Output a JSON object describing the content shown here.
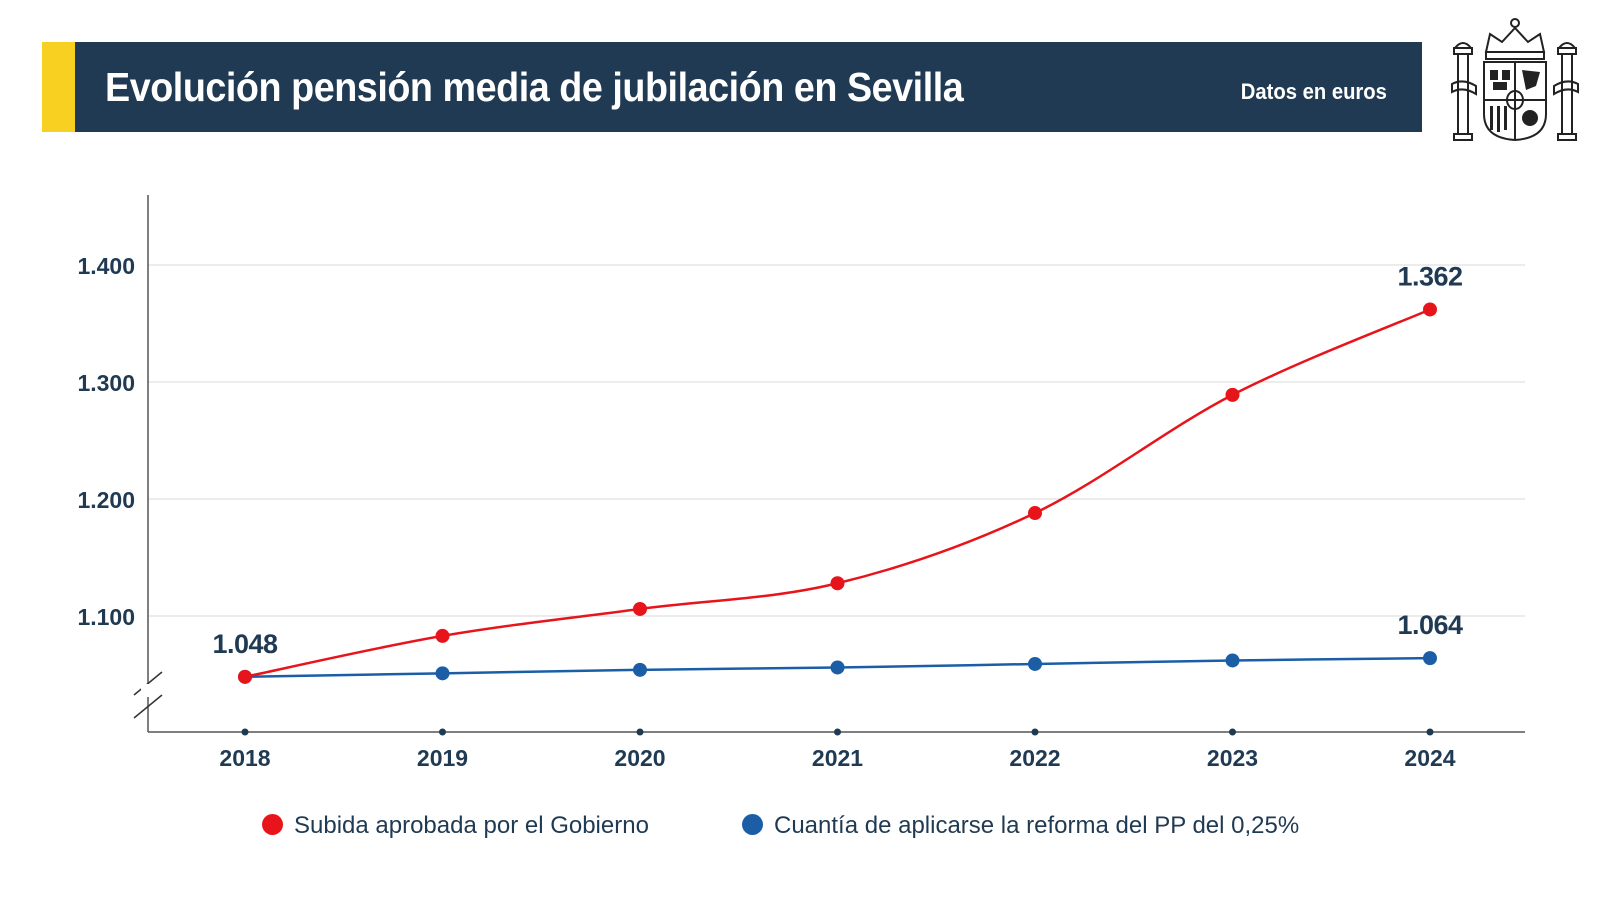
{
  "header": {
    "title": "Evolución pensión media de jubilación en Sevilla",
    "units": "Datos en euros",
    "emblem": "spain-coat-of-arms-icon"
  },
  "colors": {
    "navy": "#1f3a52",
    "yellow": "#f7d022",
    "red": "#e8141b",
    "blue": "#1b5ea6",
    "grid": "#d9d9d9"
  },
  "chart_data": {
    "type": "line",
    "x": [
      "2018",
      "2019",
      "2020",
      "2021",
      "2022",
      "2023",
      "2024"
    ],
    "series": [
      {
        "name": "Subida aprobada por el Gobierno",
        "color": "#e8141b",
        "values": [
          1048,
          1083,
          1106,
          1128,
          1188,
          1289,
          1362
        ],
        "labels": [
          "1.048",
          "",
          "",
          "",
          "",
          "",
          "1.362"
        ]
      },
      {
        "name": "Cuantía de aplicarse la reforma del PP del 0,25%",
        "color": "#1b5ea6",
        "values": [
          1048,
          1051,
          1054,
          1056,
          1059,
          1062,
          1064
        ],
        "labels": [
          "",
          "",
          "",
          "",
          "",
          "",
          "1.064"
        ]
      }
    ],
    "yticks": [
      1100,
      1200,
      1300,
      1400
    ],
    "ytick_labels": [
      "1.100",
      "1.200",
      "1.300",
      "1.400"
    ],
    "ylim": [
      1000,
      1460
    ],
    "axis_break": true,
    "grid": "horizontal",
    "legend": "bottom"
  }
}
